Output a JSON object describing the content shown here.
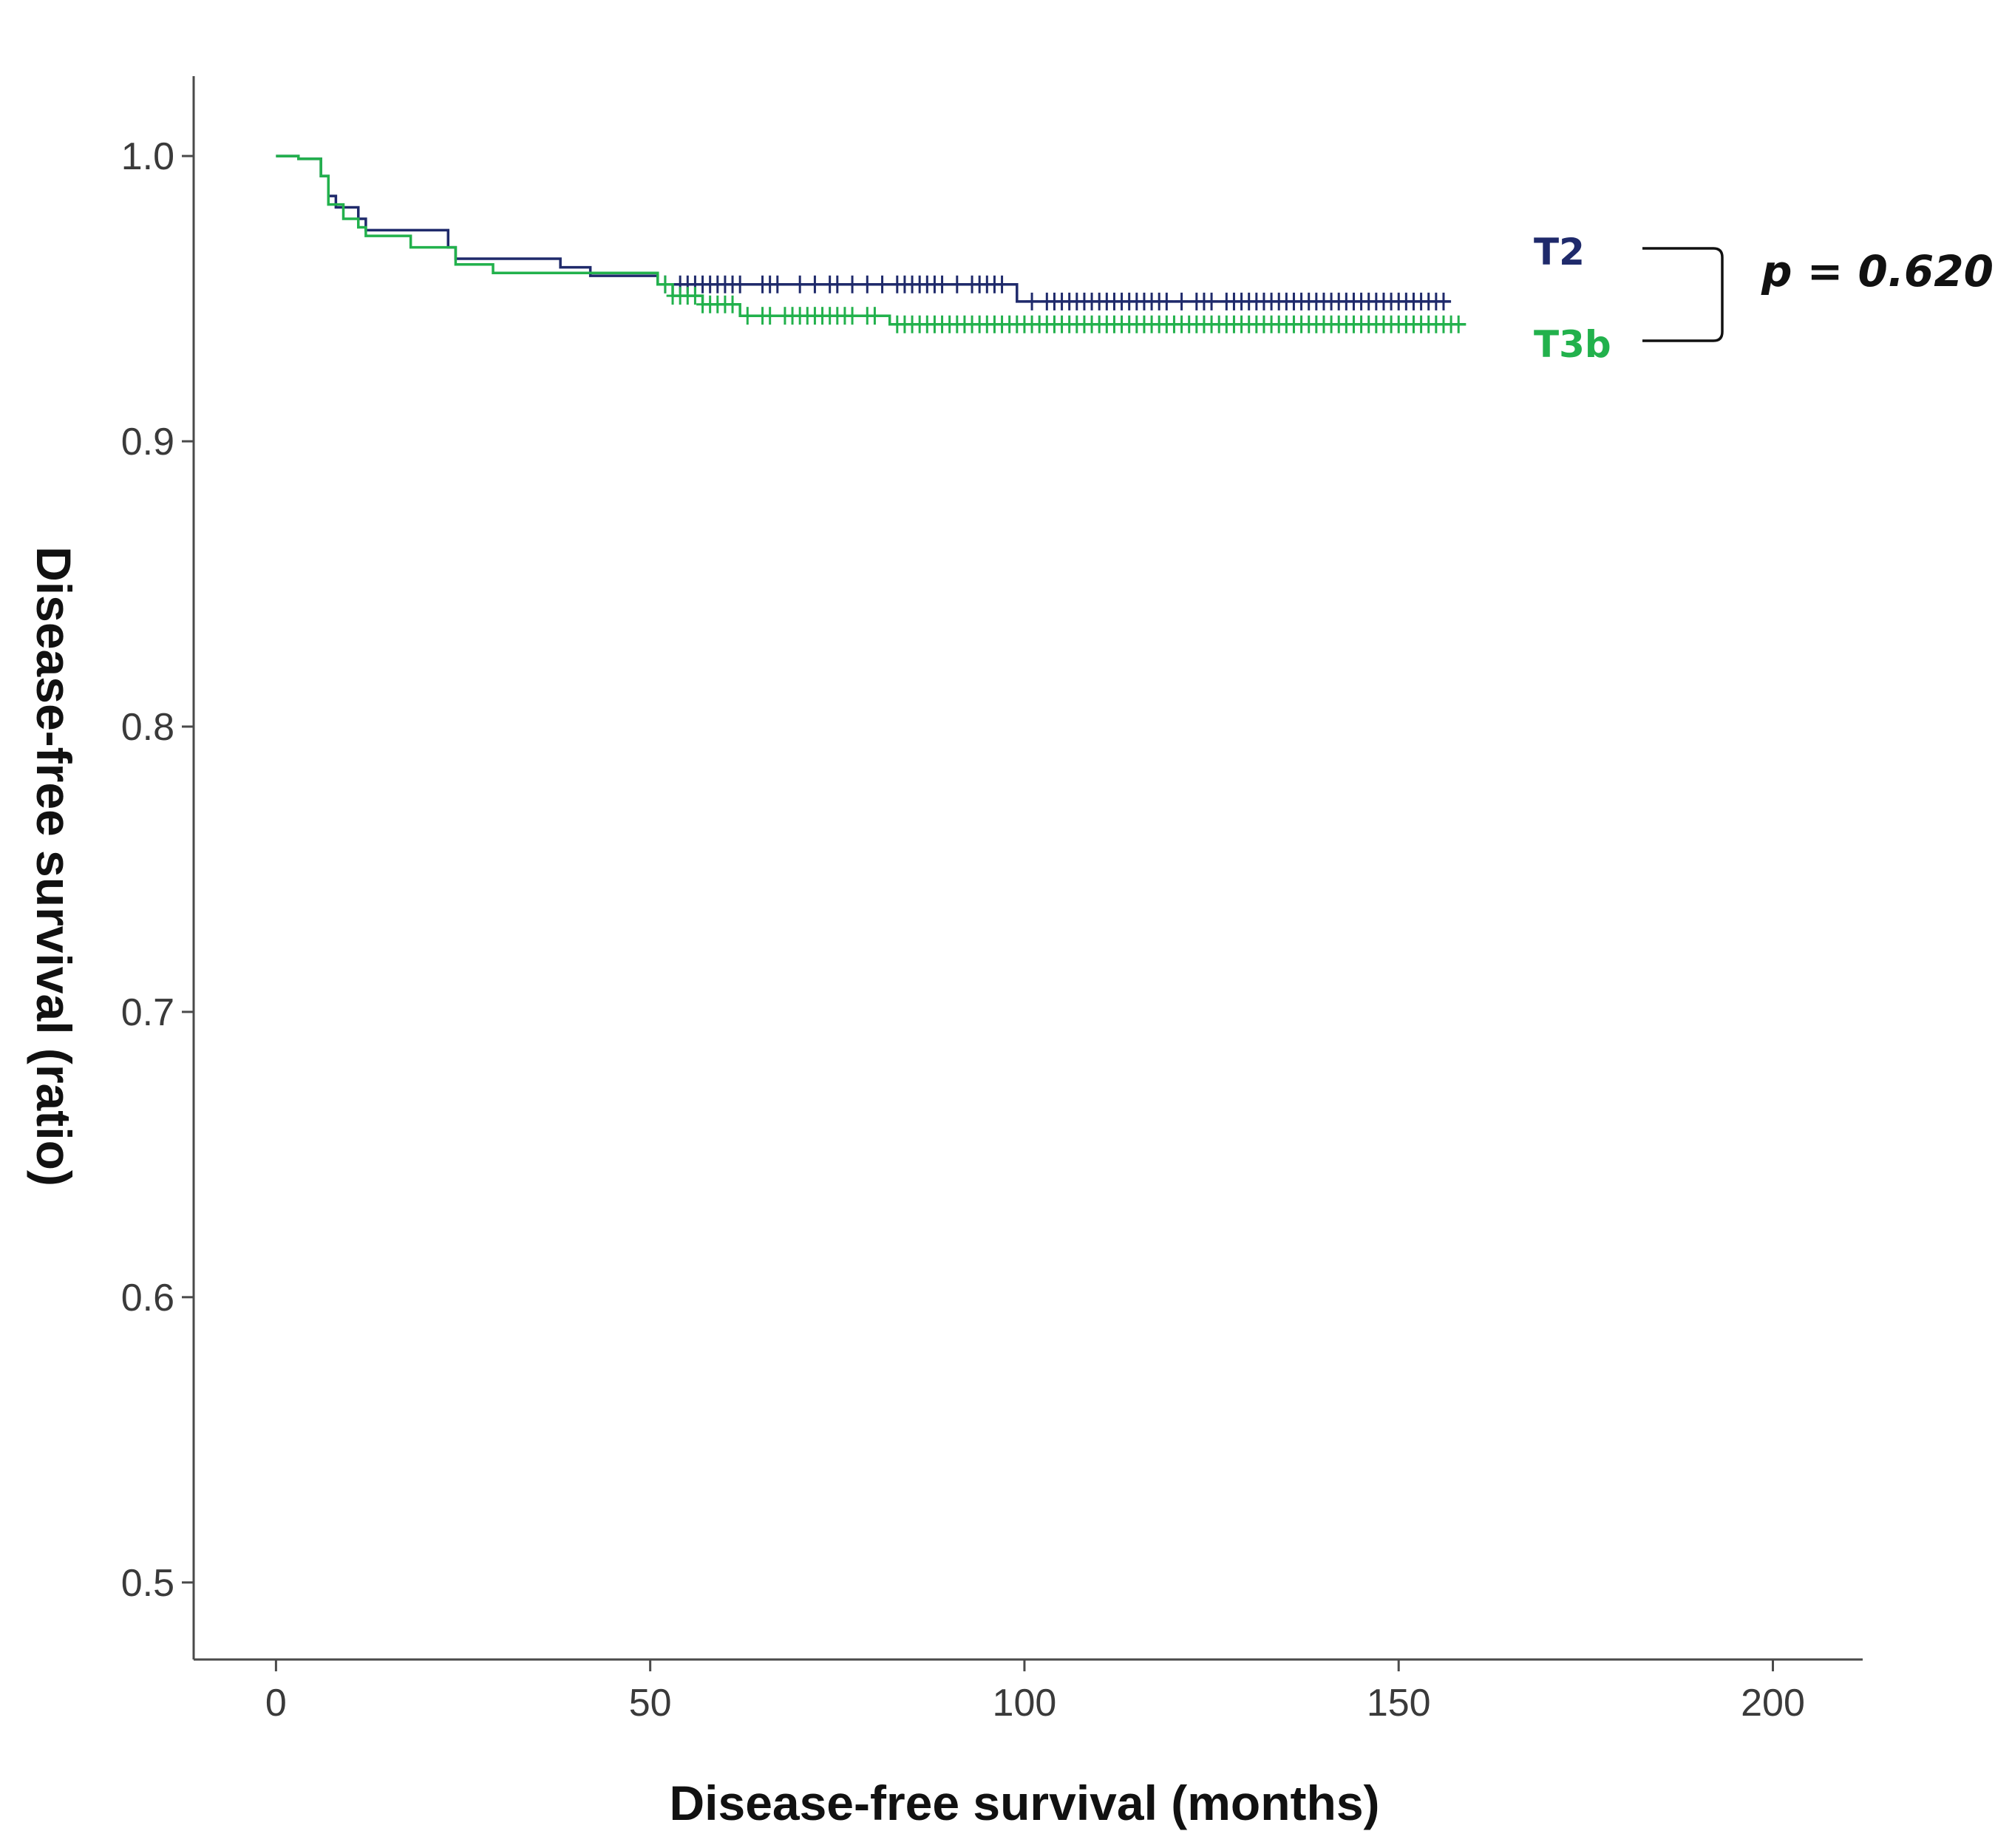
{
  "chart_data": {
    "type": "line",
    "subtype": "kaplan-meier",
    "xlabel": "Disease-free survival (months)",
    "ylabel": "Disease-free survival (ratio)",
    "xlim": [
      -11,
      212
    ],
    "ylim": [
      0.473,
      1.028
    ],
    "x_ticks": [
      0,
      50,
      100,
      150,
      200
    ],
    "x_tick_labels": [
      "0",
      "50",
      "100",
      "150",
      "200"
    ],
    "y_ticks": [
      0.5,
      0.6,
      0.7,
      0.8,
      0.9,
      1.0
    ],
    "y_tick_labels": [
      "0.5",
      "0.6",
      "0.7",
      "0.8",
      "0.9",
      "1.0"
    ],
    "grid": false,
    "annotation": "p = 0.620",
    "series": [
      {
        "name": "T2",
        "color": "#1f2a6b",
        "steps": [
          [
            0,
            1.0
          ],
          [
            3,
            0.999
          ],
          [
            6,
            0.993
          ],
          [
            7,
            0.986
          ],
          [
            8,
            0.982
          ],
          [
            11,
            0.978
          ],
          [
            12,
            0.974
          ],
          [
            23,
            0.968
          ],
          [
            24,
            0.964
          ],
          [
            38,
            0.961
          ],
          [
            42,
            0.958
          ],
          [
            51,
            0.955
          ],
          [
            99,
            0.949
          ],
          [
            157,
            0.949
          ]
        ],
        "censors": [
          52,
          54,
          55,
          56,
          57,
          58,
          59,
          60,
          61,
          62,
          65,
          66,
          67,
          70,
          72,
          74,
          75,
          77,
          79,
          81,
          83,
          84,
          85,
          86,
          87,
          88,
          89,
          91,
          93,
          94,
          95,
          96,
          97,
          101,
          103,
          104,
          105,
          106,
          107,
          108,
          109,
          110,
          111,
          112,
          113,
          114,
          115,
          116,
          117,
          118,
          119,
          121,
          123,
          124,
          125,
          127,
          128,
          129,
          130,
          131,
          132,
          133,
          134,
          135,
          136,
          137,
          138,
          139,
          140,
          141,
          142,
          143,
          144,
          145,
          146,
          147,
          148,
          149,
          150,
          151,
          152,
          153,
          154,
          155,
          156
        ]
      },
      {
        "name": "T3b",
        "color": "#22b14c",
        "steps": [
          [
            0,
            1.0
          ],
          [
            3,
            0.999
          ],
          [
            6,
            0.993
          ],
          [
            7,
            0.983
          ],
          [
            9,
            0.978
          ],
          [
            11,
            0.975
          ],
          [
            12,
            0.972
          ],
          [
            18,
            0.968
          ],
          [
            24,
            0.962
          ],
          [
            29,
            0.959
          ],
          [
            51,
            0.955
          ],
          [
            53,
            0.951
          ],
          [
            57,
            0.948
          ],
          [
            62,
            0.944
          ],
          [
            82,
            0.941
          ],
          [
            159,
            0.941
          ]
        ],
        "censors": [
          52,
          53,
          54,
          55,
          56,
          57,
          58,
          59,
          60,
          61,
          63,
          65,
          66,
          68,
          69,
          70,
          71,
          72,
          73,
          74,
          75,
          76,
          77,
          79,
          80,
          83,
          84,
          85,
          86,
          87,
          88,
          89,
          90,
          91,
          92,
          93,
          94,
          95,
          96,
          97,
          98,
          99,
          100,
          101,
          102,
          103,
          104,
          105,
          106,
          107,
          108,
          109,
          110,
          111,
          112,
          113,
          114,
          115,
          116,
          117,
          118,
          119,
          120,
          121,
          122,
          123,
          124,
          125,
          126,
          127,
          128,
          129,
          130,
          131,
          132,
          133,
          134,
          135,
          136,
          137,
          138,
          139,
          140,
          141,
          142,
          143,
          144,
          145,
          146,
          147,
          148,
          149,
          150,
          151,
          152,
          153,
          154,
          155,
          156,
          157,
          158
        ]
      }
    ]
  }
}
